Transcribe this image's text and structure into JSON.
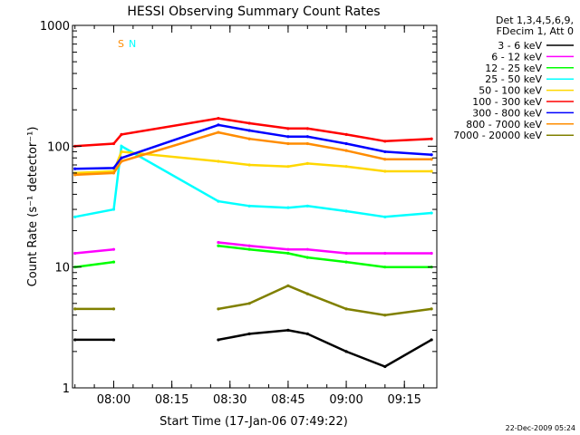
{
  "chart_data": {
    "type": "line",
    "title": "HESSI Observing Summary Count Rates",
    "xlabel": "Start Time (17-Jan-06 07:49:22)",
    "ylabel": "Count Rate (s⁻¹ detector⁻¹)",
    "y_scale": "log",
    "ylim": [
      1,
      1000
    ],
    "xlim": [
      "07:49:22",
      "09:23:22"
    ],
    "x_ticks": [
      "08:00",
      "08:15",
      "08:30",
      "08:45",
      "09:00",
      "09:15"
    ],
    "y_ticks": [
      "1",
      "10",
      "100",
      "1000"
    ],
    "legend_header": [
      "Det 1,3,4,5,6,9,",
      "FDecim 1, Att 0"
    ],
    "legend_position": "right",
    "series": [
      {
        "name": "3 - 6 keV",
        "color": "#000000",
        "x": [
          "07:50",
          "08:00",
          "08:05",
          "08:27",
          "08:35",
          "08:45",
          "08:50",
          "09:00",
          "09:10",
          "09:22"
        ],
        "y": [
          2.5,
          2.5,
          null,
          2.5,
          2.8,
          3.0,
          2.8,
          2.0,
          1.5,
          2.5
        ]
      },
      {
        "name": "6 - 12 keV",
        "color": "#ff00ff",
        "x": [
          "07:50",
          "08:00",
          "08:05",
          "08:27",
          "08:35",
          "08:45",
          "08:50",
          "09:00",
          "09:10",
          "09:22"
        ],
        "y": [
          13,
          14,
          null,
          16,
          15,
          14,
          14,
          13,
          13,
          13
        ]
      },
      {
        "name": "12 - 25 keV",
        "color": "#00ff00",
        "x": [
          "07:50",
          "08:00",
          "08:05",
          "08:27",
          "08:35",
          "08:45",
          "08:50",
          "09:00",
          "09:10",
          "09:22"
        ],
        "y": [
          10,
          11,
          null,
          15,
          14,
          13,
          12,
          11,
          10,
          10
        ]
      },
      {
        "name": "25 - 50 keV",
        "color": "#00ffff",
        "x": [
          "07:50",
          "08:00",
          "08:02",
          "08:27",
          "08:35",
          "08:45",
          "08:50",
          "09:00",
          "09:10",
          "09:22"
        ],
        "y": [
          26,
          30,
          100,
          35,
          32,
          31,
          32,
          29,
          26,
          28
        ]
      },
      {
        "name": "50 - 100 keV",
        "color": "#ffd700",
        "x": [
          "07:50",
          "08:00",
          "08:02",
          "08:27",
          "08:35",
          "08:45",
          "08:50",
          "09:00",
          "09:10",
          "09:22"
        ],
        "y": [
          60,
          62,
          90,
          75,
          70,
          68,
          72,
          68,
          62,
          62
        ]
      },
      {
        "name": "100 - 300 keV",
        "color": "#ff0000",
        "x": [
          "07:50",
          "08:00",
          "08:02",
          "08:27",
          "08:35",
          "08:45",
          "08:50",
          "09:00",
          "09:10",
          "09:22"
        ],
        "y": [
          100,
          105,
          125,
          170,
          155,
          140,
          140,
          125,
          110,
          115
        ]
      },
      {
        "name": "300 - 800 keV",
        "color": "#0000ff",
        "x": [
          "07:50",
          "08:00",
          "08:02",
          "08:27",
          "08:35",
          "08:45",
          "08:50",
          "09:00",
          "09:10",
          "09:22"
        ],
        "y": [
          65,
          66,
          80,
          150,
          135,
          120,
          120,
          105,
          90,
          85
        ]
      },
      {
        "name": "800 - 7000 keV",
        "color": "#ff8c00",
        "x": [
          "07:50",
          "08:00",
          "08:02",
          "08:27",
          "08:35",
          "08:45",
          "08:50",
          "09:00",
          "09:10",
          "09:22"
        ],
        "y": [
          58,
          60,
          75,
          130,
          115,
          105,
          105,
          92,
          78,
          78
        ]
      },
      {
        "name": "7000 - 20000 keV",
        "color": "#808000",
        "x": [
          "07:50",
          "08:00",
          "08:05",
          "08:27",
          "08:35",
          "08:45",
          "08:50",
          "09:00",
          "09:10",
          "09:22"
        ],
        "y": [
          4.5,
          4.5,
          null,
          4.5,
          5.0,
          7.0,
          6.0,
          4.5,
          4.0,
          4.5
        ]
      }
    ],
    "markers": [
      {
        "label": "S",
        "color": "#ff8c00"
      },
      {
        "label": "N",
        "color": "#00ffff"
      }
    ],
    "footer": "22-Dec-2009 05:24"
  }
}
